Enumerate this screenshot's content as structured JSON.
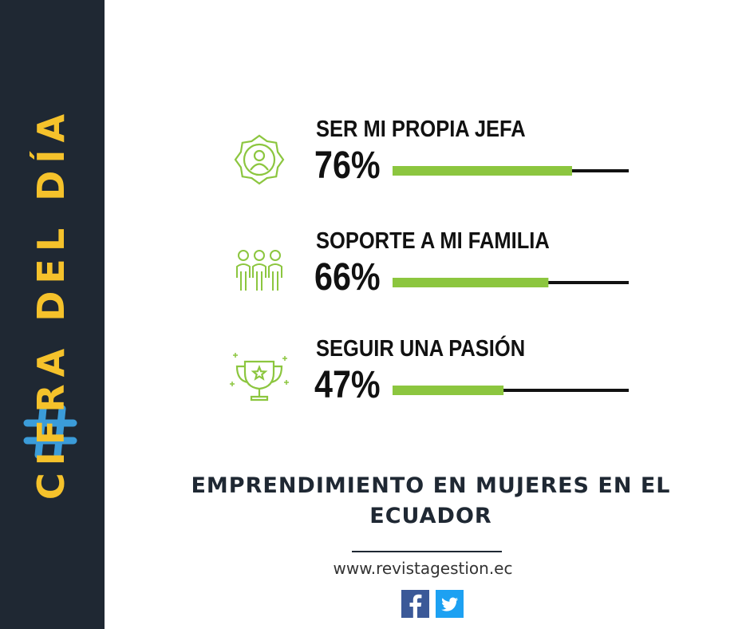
{
  "sidebar": {
    "title": "CIFRA DEL DÍA",
    "icon": "hashtag-icon",
    "background": "#1f2833",
    "accent_yellow": "#f5c22b",
    "accent_blue": "#3b9cd9"
  },
  "chart_data": {
    "type": "bar",
    "orientation": "horizontal",
    "categories": [
      "SER MI PROPIA JEFA",
      "SOPORTE A MI FAMILIA",
      "SEGUIR UNA PASIÓN"
    ],
    "values": [
      76,
      66,
      47
    ],
    "value_labels": [
      "76%",
      "66%",
      "47%"
    ],
    "icons": [
      "gear-person-icon",
      "family-icon",
      "trophy-icon"
    ],
    "xlim": [
      0,
      100
    ],
    "grid": false,
    "bar_color": "#8cc63f",
    "track_color": "#111111"
  },
  "headline": "EMPRENDIMIENTO EN MUJERES EN EL ECUADOR",
  "footer": {
    "website": "www.revistagestion.ec",
    "social": [
      "facebook-icon",
      "twitter-icon"
    ]
  }
}
